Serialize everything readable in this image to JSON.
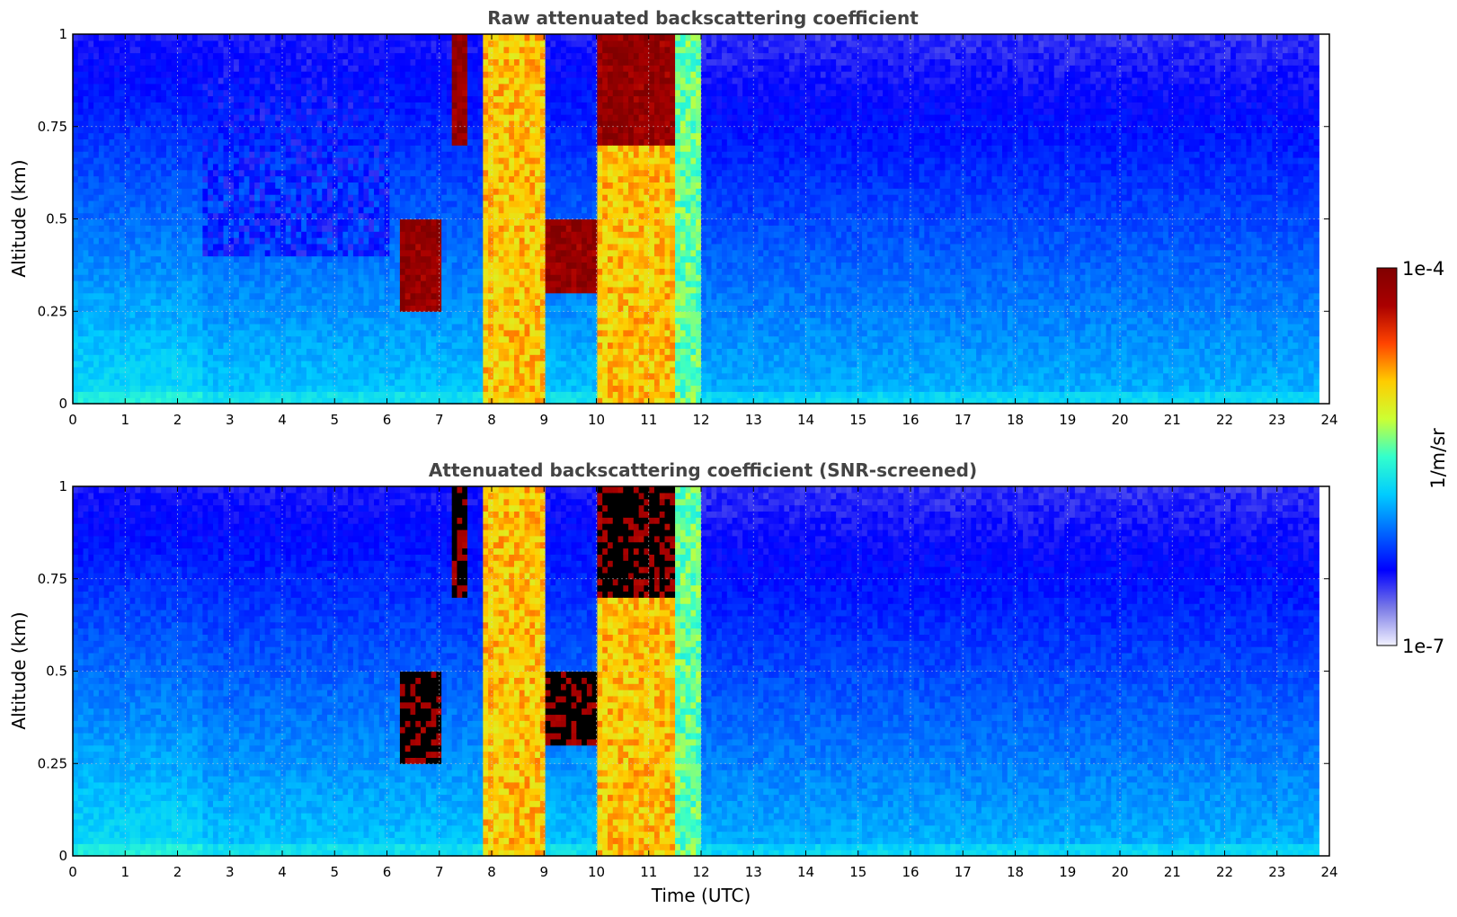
{
  "chart_data": [
    {
      "type": "heatmap",
      "title": "Raw attenuated backscattering coefficient",
      "xlabel": "",
      "ylabel": "Altitude (km)",
      "xlim": [
        0,
        24
      ],
      "ylim": [
        0,
        1
      ],
      "x_ticks": [
        "0",
        "1",
        "2",
        "3",
        "4",
        "5",
        "6",
        "7",
        "8",
        "9",
        "10",
        "11",
        "12",
        "13",
        "14",
        "15",
        "16",
        "17",
        "18",
        "19",
        "20",
        "21",
        "22",
        "23",
        "24"
      ],
      "y_ticks": [
        "0",
        "0.25",
        "0.5",
        "0.75",
        "1"
      ],
      "grid": true,
      "data_end_hour": 23.8,
      "features": [
        {
          "hour_range": [
            6.2,
            7.0
          ],
          "altitude_range": [
            0.25,
            0.5
          ],
          "level": "high"
        },
        {
          "hour_range": [
            7.2,
            7.5
          ],
          "altitude_range": [
            0.7,
            1.0
          ],
          "level": "high"
        },
        {
          "hour_range": [
            7.8,
            9.0
          ],
          "altitude_range": [
            0.0,
            1.0
          ],
          "level": "medium-high"
        },
        {
          "hour_range": [
            9.0,
            10.0
          ],
          "altitude_range": [
            0.3,
            0.5
          ],
          "level": "high"
        },
        {
          "hour_range": [
            10.0,
            11.5
          ],
          "altitude_range": [
            0.7,
            1.0
          ],
          "level": "high"
        },
        {
          "hour_range": [
            10.0,
            11.5
          ],
          "altitude_range": [
            0.0,
            0.8
          ],
          "level": "medium-high"
        },
        {
          "hour_range": [
            11.5,
            12.0
          ],
          "altitude_range": [
            0.0,
            1.0
          ],
          "level": "medium"
        },
        {
          "hour_range": [
            2.5,
            6.0
          ],
          "altitude_range": [
            0.4,
            1.0
          ],
          "level": "low"
        }
      ]
    },
    {
      "type": "heatmap",
      "title": "Attenuated backscattering coefficient (SNR-screened)",
      "xlabel": "Time (UTC)",
      "ylabel": "Altitude (km)",
      "xlim": [
        0,
        24
      ],
      "ylim": [
        0,
        1
      ],
      "x_ticks": [
        "0",
        "1",
        "2",
        "3",
        "4",
        "5",
        "6",
        "7",
        "8",
        "9",
        "10",
        "11",
        "12",
        "13",
        "14",
        "15",
        "16",
        "17",
        "18",
        "19",
        "20",
        "21",
        "22",
        "23",
        "24"
      ],
      "y_ticks": [
        "0",
        "0.25",
        "0.5",
        "0.75",
        "1"
      ],
      "grid": true,
      "data_end_hour": 23.8,
      "screened_color": "#000000",
      "features": [
        {
          "hour_range": [
            6.2,
            7.0
          ],
          "altitude_range": [
            0.25,
            0.5
          ],
          "level": "high"
        },
        {
          "hour_range": [
            7.2,
            7.5
          ],
          "altitude_range": [
            0.7,
            1.0
          ],
          "level": "high"
        },
        {
          "hour_range": [
            7.8,
            9.0
          ],
          "altitude_range": [
            0.0,
            1.0
          ],
          "level": "medium-high"
        },
        {
          "hour_range": [
            9.0,
            10.0
          ],
          "altitude_range": [
            0.3,
            0.5
          ],
          "level": "high"
        },
        {
          "hour_range": [
            10.0,
            11.5
          ],
          "altitude_range": [
            0.7,
            1.0
          ],
          "level": "high"
        },
        {
          "hour_range": [
            10.0,
            11.5
          ],
          "altitude_range": [
            0.0,
            0.8
          ],
          "level": "medium-high"
        },
        {
          "hour_range": [
            11.5,
            12.0
          ],
          "altitude_range": [
            0.0,
            1.0
          ],
          "level": "medium"
        }
      ]
    }
  ],
  "colorbar": {
    "label": "1/m/sr",
    "max_label": "1e-4",
    "min_label": "1e-7",
    "scale": "log",
    "colors": [
      "#f2f2ff",
      "#7a7ae6",
      "#0000ff",
      "#0066ff",
      "#00ccff",
      "#33ffcc",
      "#ccff33",
      "#ffcc00",
      "#ff4400",
      "#aa0000",
      "#800000"
    ]
  }
}
